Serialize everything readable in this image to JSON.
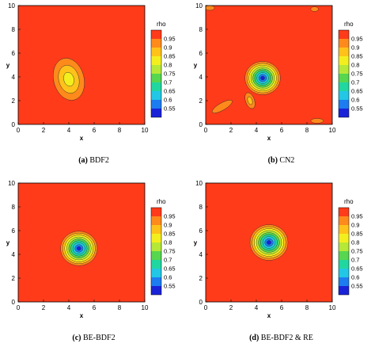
{
  "colorbar_levels": [
    {
      "value": "0.95",
      "color": "#ff3b1a"
    },
    {
      "value": "0.9",
      "color": "#ff8a1c"
    },
    {
      "value": "0.85",
      "color": "#ffc21a"
    },
    {
      "value": "0.8",
      "color": "#f3ef1f"
    },
    {
      "value": "0.75",
      "color": "#b6e838"
    },
    {
      "value": "0.7",
      "color": "#57d64f"
    },
    {
      "value": "0.65",
      "color": "#21d7a0"
    },
    {
      "value": "0.6",
      "color": "#22c7e6"
    },
    {
      "value": "0.55",
      "color": "#1d7cf0"
    },
    {
      "value": "",
      "color": "#1a22d8"
    }
  ],
  "chart_data": [
    {
      "type": "heatmap",
      "variable": "rho",
      "caption_label": "(a)",
      "caption_text": "BDF2",
      "xlabel": "x",
      "ylabel": "y",
      "xlim": [
        0,
        10
      ],
      "ylim": [
        0,
        10
      ],
      "xticks": [
        "0",
        "2",
        "4",
        "6",
        "8",
        "10"
      ],
      "yticks": [
        "0",
        "2",
        "4",
        "6",
        "8",
        "10"
      ],
      "background_level": 0,
      "features": [
        {
          "kind": "blob",
          "cx": 4.0,
          "cy": 3.8,
          "rx": 1.2,
          "ry": 1.8,
          "rot": -15,
          "min_level": 3
        }
      ]
    },
    {
      "type": "heatmap",
      "variable": "rho",
      "caption_label": "(b)",
      "caption_text": "CN2",
      "xlabel": "x",
      "ylabel": "y",
      "xlim": [
        0,
        10
      ],
      "ylim": [
        0,
        10
      ],
      "xticks": [
        "0",
        "2",
        "4",
        "6",
        "8",
        "10"
      ],
      "yticks": [
        "0",
        "2",
        "4",
        "6",
        "8",
        "10"
      ],
      "background_level": 0,
      "features": [
        {
          "kind": "blob",
          "cx": 4.5,
          "cy": 3.9,
          "rx": 1.4,
          "ry": 1.4,
          "rot": 0,
          "min_level": 9
        },
        {
          "kind": "blob",
          "cx": 1.3,
          "cy": 1.5,
          "rx": 0.9,
          "ry": 0.3,
          "rot": -30,
          "min_level": 1
        },
        {
          "kind": "blob",
          "cx": 3.5,
          "cy": 2.0,
          "rx": 0.35,
          "ry": 0.7,
          "rot": -20,
          "min_level": 2
        },
        {
          "kind": "blob",
          "cx": 8.8,
          "cy": 0.3,
          "rx": 0.5,
          "ry": 0.2,
          "rot": 0,
          "min_level": 1
        },
        {
          "kind": "blob",
          "cx": 0.3,
          "cy": 9.8,
          "rx": 0.4,
          "ry": 0.2,
          "rot": 0,
          "min_level": 1
        },
        {
          "kind": "blob",
          "cx": 8.6,
          "cy": 9.7,
          "rx": 0.3,
          "ry": 0.2,
          "rot": 0,
          "min_level": 1
        }
      ]
    },
    {
      "type": "heatmap",
      "variable": "rho",
      "caption_label": "(c)",
      "caption_text": "BE-BDF2",
      "xlabel": "x",
      "ylabel": "y",
      "xlim": [
        0,
        10
      ],
      "ylim": [
        0,
        10
      ],
      "xticks": [
        "0",
        "2",
        "4",
        "6",
        "8",
        "10"
      ],
      "yticks": [
        "0",
        "2",
        "4",
        "6",
        "8",
        "10"
      ],
      "background_level": 0,
      "features": [
        {
          "kind": "blob",
          "cx": 4.8,
          "cy": 4.5,
          "rx": 1.45,
          "ry": 1.45,
          "rot": 0,
          "min_level": 9
        }
      ]
    },
    {
      "type": "heatmap",
      "variable": "rho",
      "caption_label": "(d)",
      "caption_text": "BE-BDF2 & RE",
      "xlabel": "x",
      "ylabel": "y",
      "xlim": [
        0,
        10
      ],
      "ylim": [
        0,
        10
      ],
      "xticks": [
        "0",
        "2",
        "4",
        "6",
        "8",
        "10"
      ],
      "yticks": [
        "0",
        "2",
        "4",
        "6",
        "8",
        "10"
      ],
      "background_level": 0,
      "features": [
        {
          "kind": "blob",
          "cx": 5.0,
          "cy": 5.0,
          "rx": 1.5,
          "ry": 1.5,
          "rot": 0,
          "min_level": 9
        }
      ]
    }
  ]
}
